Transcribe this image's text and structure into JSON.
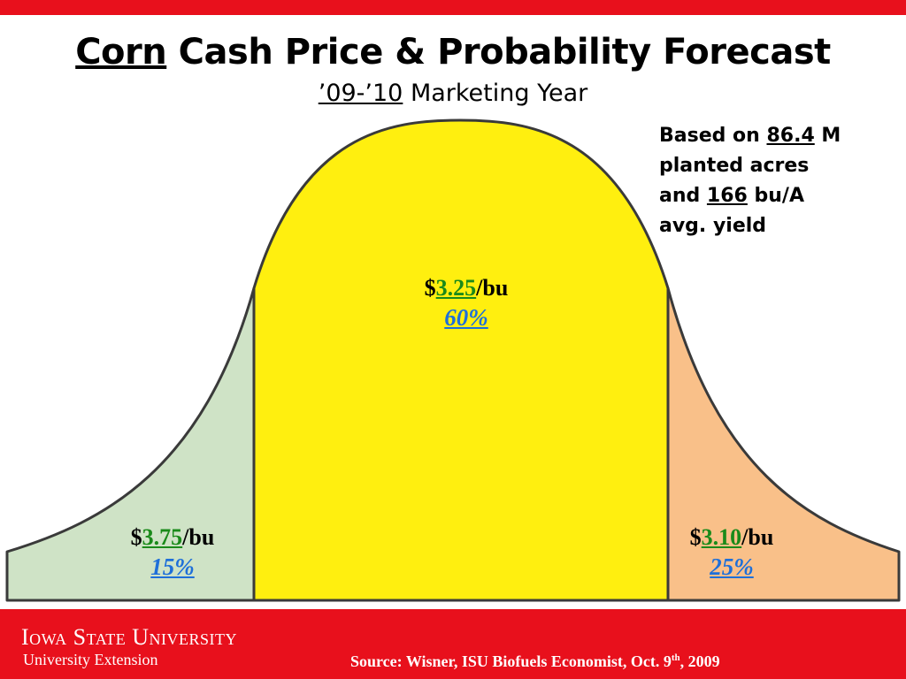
{
  "header": {
    "title_underlined": "Corn",
    "title_rest": " Cash Price & Probability Forecast",
    "subtitle_underlined": "’09-’10",
    "subtitle_rest": " Marketing Year"
  },
  "notes": {
    "line1_prefix": "Based on ",
    "acres": "86.4",
    "line1_suffix": " M",
    "line2": "planted acres",
    "line3_prefix": "and ",
    "yield": "166",
    "line3_suffix": " bu/A",
    "line4": "avg. yield"
  },
  "regions": {
    "left": {
      "currency": "$",
      "price": "3.75",
      "unit": "/bu",
      "probability": "15%",
      "color": "#cfe3c6"
    },
    "center": {
      "currency": "$",
      "price": "3.25",
      "unit": "/bu",
      "probability": "60%",
      "color": "#ffef0f"
    },
    "right": {
      "currency": "$",
      "price": "3.10",
      "unit": "/bu",
      "probability": "25%",
      "color": "#f9c089"
    }
  },
  "footer": {
    "university_initial_1": "I",
    "university_word_1": "owa ",
    "university_initial_2": "S",
    "university_word_2": "tate ",
    "university_initial_3": "U",
    "university_word_3": "niversity",
    "extension": "University Extension",
    "source_prefix": "Source:  Wisner, ISU Biofuels Economist, Oct. 9",
    "source_sup": "th",
    "source_suffix": ", 2009"
  },
  "colors": {
    "accent_red": "#e8101c",
    "price_green": "#1a8a1a",
    "probability_blue": "#1e6fd9",
    "outline": "#3a3a3a"
  }
}
